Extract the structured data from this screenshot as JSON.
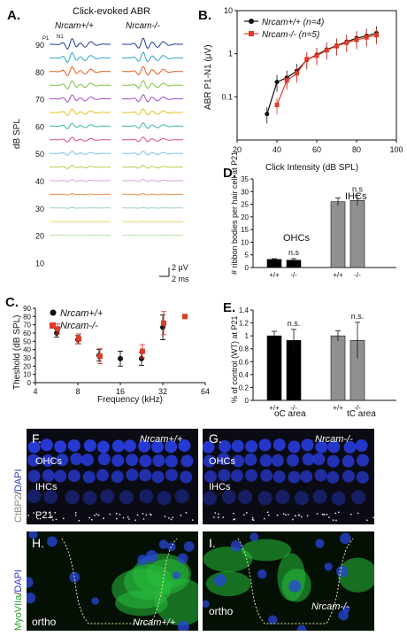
{
  "panelA": {
    "letter": "A.",
    "title": "Click-evoked ABR",
    "col_left": "Nrcam+/+",
    "col_right": "Nrcam-/-",
    "peak_p1": "P1",
    "peak_n1": "N1",
    "ylabel": "dB SPL",
    "levels": [
      "90",
      "80",
      "70",
      "60",
      "50",
      "40",
      "30",
      "20",
      "10"
    ],
    "scale_v": "2 μV",
    "scale_t": "2 ms",
    "trace_colors": [
      "#1f3d8a",
      "#2ea6c9",
      "#e85a1f",
      "#7cc242",
      "#9b4dca",
      "#e8c21f",
      "#3cb4a0",
      "#e04a8a",
      "#7fbfe8",
      "#b0d04a",
      "#d7a0e0",
      "#f08c4a",
      "#9ad0c0",
      "#f0d060",
      "#b8e0a0"
    ]
  },
  "panelB": {
    "letter": "B.",
    "chart_data": {
      "type": "line",
      "xlabel": "Click Intensity (dB SPL)",
      "ylabel": "ABR P1-N1 (μV)",
      "xlim": [
        20,
        100
      ],
      "ylim_log": [
        0.01,
        10
      ],
      "xticks": [
        "20",
        "40",
        "60",
        "80",
        "100"
      ],
      "yticks": [
        "10",
        "1",
        "0.1"
      ],
      "series": [
        {
          "name": "Nrcam+/+ (n=4)",
          "color": "#111111",
          "x": [
            35,
            40,
            45,
            50,
            55,
            60,
            65,
            70,
            75,
            80,
            85,
            90
          ],
          "y": [
            0.04,
            0.22,
            0.28,
            0.4,
            0.72,
            0.95,
            1.25,
            1.55,
            1.9,
            2.3,
            2.6,
            3.0
          ]
        },
        {
          "name": "Nrcam-/- (n=5)",
          "color": "#e03a2a",
          "x": [
            40,
            45,
            50,
            55,
            60,
            65,
            70,
            75,
            80,
            85,
            90
          ],
          "y": [
            0.065,
            0.24,
            0.35,
            0.75,
            0.9,
            1.2,
            1.5,
            1.8,
            2.1,
            2.4,
            2.7
          ]
        }
      ]
    }
  },
  "panelC": {
    "letter": "C.",
    "chart_data": {
      "type": "scatter",
      "xlabel": "Frequency (kHz)",
      "ylabel": "Theshold (dB SPL)",
      "xticks": [
        "4",
        "8",
        "16",
        "32",
        "64"
      ],
      "yticks": [
        "0",
        "10",
        "20",
        "30",
        "40",
        "50",
        "60",
        "70",
        "80",
        "90"
      ],
      "ylim": [
        0,
        90
      ],
      "series": [
        {
          "name": "Nrcam+/+",
          "color": "#111111",
          "x": [
            5.66,
            8,
            11.3,
            16,
            22.6,
            32
          ],
          "y": [
            60,
            52,
            33,
            29,
            29,
            67
          ]
        },
        {
          "name": "Nrcam-/-",
          "color": "#e03a2a",
          "x": [
            5.66,
            8,
            11.3,
            22.6,
            32,
            45.25
          ],
          "y": [
            65,
            53,
            32,
            38,
            72,
            80
          ]
        }
      ]
    }
  },
  "panelD": {
    "letter": "D.",
    "chart_data": {
      "type": "bar",
      "ylabel": "# ribbon bodies per hair cell at P21",
      "ylim": [
        0,
        35
      ],
      "yticks": [
        "0",
        "5",
        "10",
        "15",
        "20",
        "25",
        "30",
        "35"
      ],
      "groups": [
        "OHCs",
        "IHCs"
      ],
      "categories": [
        "+/+",
        "-/-",
        "+/+",
        "-/-"
      ],
      "values": [
        3.2,
        2.9,
        26,
        26.5
      ],
      "errors": [
        0.3,
        0.6,
        1.5,
        2.0
      ],
      "colors": [
        "#000000",
        "#000000",
        "#909090",
        "#909090"
      ],
      "annotations": [
        "n.s",
        "n.s"
      ]
    }
  },
  "panelE": {
    "letter": "E.",
    "chart_data": {
      "type": "bar",
      "ylabel": "% of control (WT) at P21",
      "ylim": [
        0,
        1.4
      ],
      "yticks": [
        "0",
        "0.2",
        "0.4",
        "0.6",
        "0.8",
        "1",
        "1.2",
        "1.4"
      ],
      "categories": [
        "+/+",
        "-/-",
        "+/+",
        "-/-"
      ],
      "group_labels": [
        "oC area",
        "tC area"
      ],
      "values": [
        1.0,
        0.93,
        1.0,
        0.93
      ],
      "errors": [
        0.07,
        0.17,
        0.08,
        0.28
      ],
      "colors": [
        "#000000",
        "#000000",
        "#909090",
        "#909090"
      ],
      "annotations": [
        "n.s.",
        "n.s."
      ]
    }
  },
  "panelF": {
    "letter": "F.",
    "genotype": "Nrcam+/+",
    "ohc": "OHCs",
    "ihc": "IHCs",
    "age": "P21",
    "stain_a": "CtBP2",
    "stain_sep": "/",
    "stain_b": "DAPI"
  },
  "panelG": {
    "letter": "G.",
    "genotype": "Nrcam-/-",
    "ohc": "OHCs",
    "ihc": "IHCs"
  },
  "panelH": {
    "letter": "H.",
    "label": "ortho",
    "genotype": "Nrcam+/+",
    "stain_a": "MyoVIIa",
    "stain_sep": "/",
    "stain_b": "DAPI"
  },
  "panelI": {
    "letter": "I.",
    "label": "ortho",
    "genotype": "Nrcam-/-"
  }
}
